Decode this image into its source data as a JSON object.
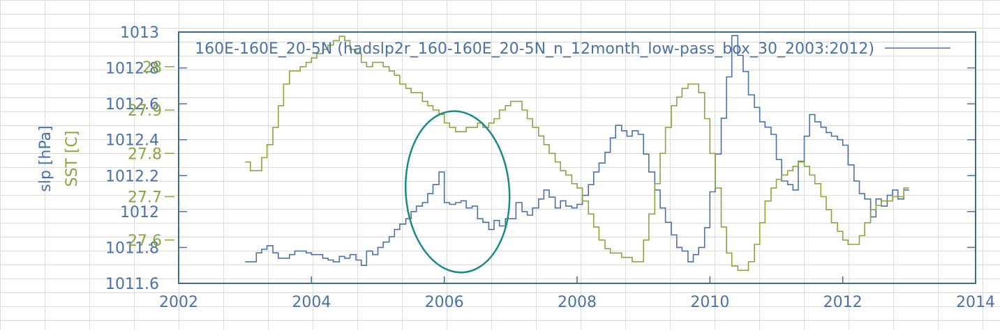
{
  "chart_data": {
    "type": "line",
    "title": "",
    "xlabel": "",
    "xlim": [
      2002,
      2014
    ],
    "x_ticks": [
      "2002",
      "2004",
      "2006",
      "2008",
      "2010",
      "2012",
      "2014"
    ],
    "legend_position": "top",
    "grid": false,
    "y_axes": [
      {
        "label": "slp [hPa]",
        "ylim": [
          1011.6,
          1013.0
        ],
        "ticks": [
          "1011.6",
          "1011.8",
          "1012",
          "1012.2",
          "1012.4",
          "1012.6",
          "1012.8",
          "1013"
        ],
        "color": "#4a72a8"
      },
      {
        "label": "SST [C]",
        "ylim": [
          27.5,
          28.08
        ],
        "ticks": [
          "27.6",
          "27.7",
          "27.8",
          "27.9",
          "28"
        ],
        "color": "#8aa63c"
      }
    ],
    "series": [
      {
        "name": "160E-160E_20-5N (hadslp2r_160-160E_20-5N_n_12month_low-pass_box_30_2003:2012)",
        "axis": "slp",
        "color": "#4a72a8",
        "x": [
          2003.0,
          2003.08,
          2003.17,
          2003.25,
          2003.33,
          2003.42,
          2003.5,
          2003.58,
          2003.67,
          2003.75,
          2003.83,
          2003.92,
          2004.0,
          2004.08,
          2004.17,
          2004.25,
          2004.33,
          2004.42,
          2004.5,
          2004.58,
          2004.67,
          2004.75,
          2004.83,
          2004.92,
          2005.0,
          2005.08,
          2005.17,
          2005.25,
          2005.33,
          2005.42,
          2005.5,
          2005.58,
          2005.67,
          2005.75,
          2005.83,
          2005.92,
          2006.0,
          2006.08,
          2006.17,
          2006.25,
          2006.33,
          2006.42,
          2006.5,
          2006.58,
          2006.67,
          2006.75,
          2006.83,
          2006.92,
          2007.0,
          2007.08,
          2007.17,
          2007.25,
          2007.33,
          2007.42,
          2007.5,
          2007.58,
          2007.67,
          2007.75,
          2007.83,
          2007.92,
          2008.0,
          2008.08,
          2008.17,
          2008.25,
          2008.33,
          2008.42,
          2008.5,
          2008.58,
          2008.67,
          2008.75,
          2008.83,
          2008.92,
          2009.0,
          2009.08,
          2009.17,
          2009.25,
          2009.33,
          2009.42,
          2009.5,
          2009.58,
          2009.67,
          2009.75,
          2009.83,
          2009.92,
          2010.0,
          2010.08,
          2010.17,
          2010.25,
          2010.33,
          2010.42,
          2010.5,
          2010.58,
          2010.67,
          2010.75,
          2010.83,
          2010.92,
          2011.0,
          2011.08,
          2011.17,
          2011.25,
          2011.33,
          2011.42,
          2011.5,
          2011.58,
          2011.67,
          2011.75,
          2011.83,
          2011.92,
          2012.0,
          2012.08,
          2012.17,
          2012.25,
          2012.33,
          2012.42,
          2012.5,
          2012.58,
          2012.67,
          2012.75,
          2012.83,
          2012.92
        ],
        "y": [
          1011.72,
          1011.72,
          1011.77,
          1011.79,
          1011.81,
          1011.77,
          1011.74,
          1011.74,
          1011.76,
          1011.78,
          1011.78,
          1011.77,
          1011.76,
          1011.76,
          1011.74,
          1011.73,
          1011.72,
          1011.75,
          1011.74,
          1011.76,
          1011.73,
          1011.7,
          1011.78,
          1011.76,
          1011.8,
          1011.83,
          1011.86,
          1011.9,
          1011.93,
          1011.96,
          1012.0,
          1012.03,
          1012.05,
          1012.1,
          1012.15,
          1012.22,
          1012.05,
          1012.04,
          1012.05,
          1012.06,
          1012.02,
          1012.03,
          1011.96,
          1011.94,
          1011.9,
          1011.95,
          1011.92,
          1011.96,
          1011.96,
          1012.05,
          1012.0,
          1011.98,
          1012.02,
          1012.07,
          1012.12,
          1012.08,
          1012.02,
          1012.06,
          1012.03,
          1012.02,
          1012.04,
          1012.09,
          1012.15,
          1012.22,
          1012.27,
          1012.33,
          1012.41,
          1012.48,
          1012.45,
          1012.42,
          1012.45,
          1012.43,
          1012.32,
          1012.22,
          1012.12,
          1012.02,
          1011.94,
          1011.87,
          1011.8,
          1011.78,
          1011.72,
          1011.76,
          1011.8,
          1011.91,
          1012.11,
          1012.32,
          1012.52,
          1012.75,
          1012.98,
          1012.87,
          1012.78,
          1012.65,
          1012.58,
          1012.5,
          1012.47,
          1012.43,
          1012.29,
          1012.17,
          1012.15,
          1012.12,
          1012.28,
          1012.42,
          1012.54,
          1012.5,
          1012.47,
          1012.44,
          1012.42,
          1012.4,
          1012.37,
          1012.26,
          1012.17,
          1012.1,
          1012.07,
          1011.97,
          1012.07,
          1012.03,
          1012.09,
          1012.12,
          1012.07,
          1012.12
        ]
      },
      {
        "name": "SST",
        "axis": "sst",
        "color": "#8aa63c",
        "x": [
          2003.0,
          2003.08,
          2003.17,
          2003.25,
          2003.33,
          2003.42,
          2003.5,
          2003.58,
          2003.67,
          2003.75,
          2003.83,
          2003.92,
          2004.0,
          2004.08,
          2004.17,
          2004.25,
          2004.33,
          2004.42,
          2004.5,
          2004.58,
          2004.67,
          2004.75,
          2004.83,
          2004.92,
          2005.0,
          2005.08,
          2005.17,
          2005.25,
          2005.33,
          2005.42,
          2005.5,
          2005.58,
          2005.67,
          2005.75,
          2005.83,
          2005.92,
          2006.0,
          2006.08,
          2006.17,
          2006.25,
          2006.33,
          2006.42,
          2006.5,
          2006.58,
          2006.67,
          2006.75,
          2006.83,
          2006.92,
          2007.0,
          2007.08,
          2007.17,
          2007.25,
          2007.33,
          2007.42,
          2007.5,
          2007.58,
          2007.67,
          2007.75,
          2007.83,
          2007.92,
          2008.0,
          2008.08,
          2008.17,
          2008.25,
          2008.33,
          2008.42,
          2008.5,
          2008.58,
          2008.67,
          2008.75,
          2008.83,
          2008.92,
          2009.0,
          2009.08,
          2009.17,
          2009.25,
          2009.33,
          2009.42,
          2009.5,
          2009.58,
          2009.67,
          2009.75,
          2009.83,
          2009.92,
          2010.0,
          2010.08,
          2010.17,
          2010.25,
          2010.33,
          2010.42,
          2010.5,
          2010.58,
          2010.67,
          2010.75,
          2010.83,
          2010.92,
          2011.0,
          2011.08,
          2011.17,
          2011.25,
          2011.33,
          2011.42,
          2011.5,
          2011.58,
          2011.67,
          2011.75,
          2011.83,
          2011.92,
          2012.0,
          2012.08,
          2012.17,
          2012.25,
          2012.33,
          2012.42,
          2012.5,
          2012.58,
          2012.67,
          2012.75,
          2012.83,
          2012.92
        ],
        "y": [
          27.78,
          27.76,
          27.76,
          27.79,
          27.82,
          27.86,
          27.91,
          27.96,
          27.99,
          27.99,
          28.0,
          28.01,
          28.02,
          28.03,
          28.04,
          28.05,
          28.06,
          28.07,
          28.06,
          28.04,
          28.03,
          28.01,
          28.0,
          28.01,
          28.01,
          28.0,
          27.99,
          27.98,
          27.96,
          27.95,
          27.94,
          27.94,
          27.92,
          27.91,
          27.9,
          27.89,
          27.87,
          27.86,
          27.85,
          27.85,
          27.86,
          27.86,
          27.87,
          27.86,
          27.87,
          27.88,
          27.9,
          27.91,
          27.92,
          27.92,
          27.9,
          27.88,
          27.86,
          27.84,
          27.82,
          27.8,
          27.78,
          27.76,
          27.75,
          27.73,
          27.72,
          27.69,
          27.66,
          27.63,
          27.6,
          27.58,
          27.57,
          27.57,
          27.56,
          27.56,
          27.55,
          27.55,
          27.6,
          27.66,
          27.73,
          27.8,
          27.86,
          27.91,
          27.93,
          27.95,
          27.96,
          27.96,
          27.94,
          27.88,
          27.8,
          27.72,
          27.63,
          27.57,
          27.54,
          27.53,
          27.53,
          27.55,
          27.59,
          27.64,
          27.69,
          27.72,
          27.74,
          27.75,
          27.76,
          27.77,
          27.78,
          27.77,
          27.75,
          27.73,
          27.7,
          27.67,
          27.64,
          27.62,
          27.6,
          27.59,
          27.59,
          27.61,
          27.64,
          27.67,
          27.68,
          27.69,
          27.69,
          27.7,
          27.7,
          27.72
        ]
      }
    ],
    "annotations": [
      {
        "type": "ellipse",
        "label": "",
        "x_center": 2006.2,
        "slp_center": 1012.11,
        "x_radius": 0.78,
        "slp_radius": 0.45,
        "color": "#1a8a84"
      }
    ]
  }
}
